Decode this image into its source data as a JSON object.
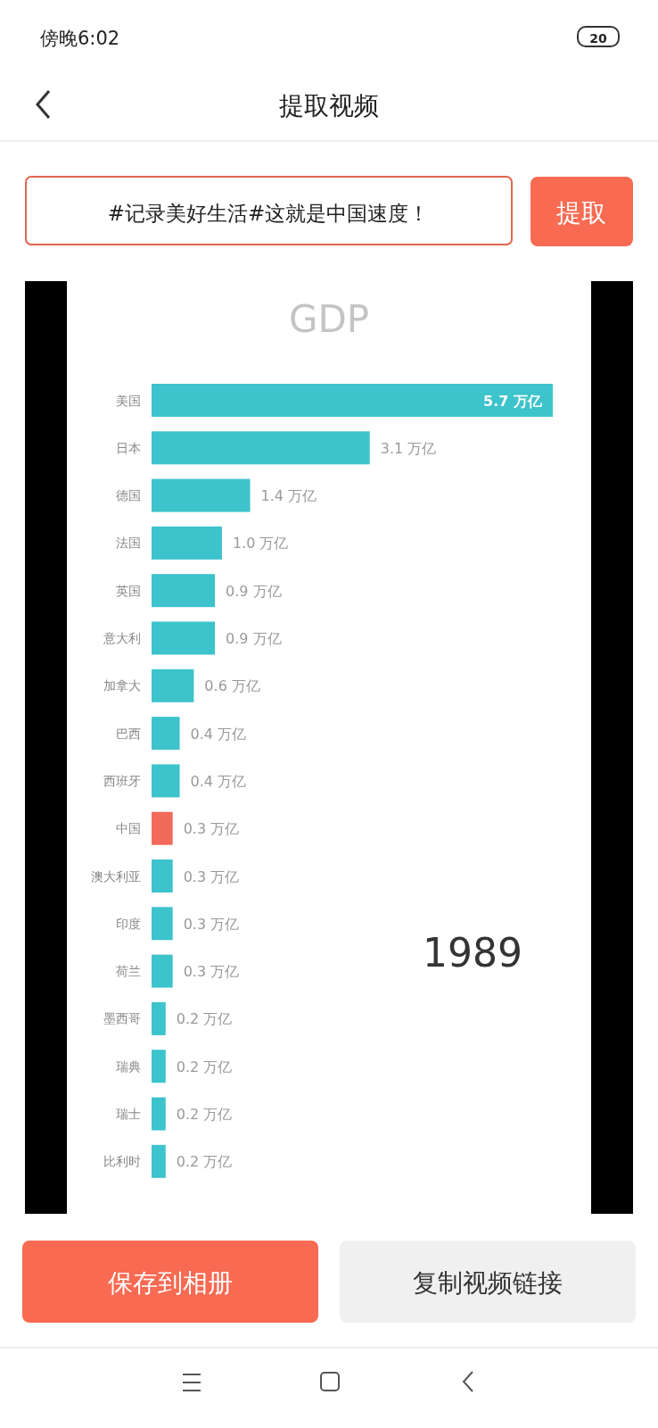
{
  "chart_data": {
    "type": "bar",
    "orientation": "horizontal",
    "title": "GDP",
    "categories": [
      "美国",
      "日本",
      "德国",
      "法国",
      "英国",
      "意大利",
      "加拿大",
      "巴西",
      "西班牙",
      "中国",
      "澳大利亚",
      "印度",
      "荷兰",
      "墨西哥",
      "瑞典",
      "瑞士",
      "比利时"
    ],
    "values": [
      5.7,
      3.1,
      1.4,
      1.0,
      0.9,
      0.9,
      0.6,
      0.4,
      0.4,
      0.3,
      0.3,
      0.3,
      0.3,
      0.2,
      0.2,
      0.2,
      0.2
    ],
    "colors": [
      "#3dc3cb",
      "#3dc3cb",
      "#3dc3cb",
      "#3dc3cb",
      "#3dc3cb",
      "#3dc3cb",
      "#3dc3cb",
      "#3dc3cb",
      "#3dc3cb",
      "#f26a5a",
      "#3dc3cb",
      "#3dc3cb",
      "#3dc3cb",
      "#3dc3cb",
      "#3dc3cb",
      "#3dc3cb",
      "#3dc3cb"
    ],
    "value_labels": [
      "5.7 万亿",
      "3.1 万亿",
      "1.4 万亿",
      "1.0 万亿",
      "0.9 万亿",
      "0.9 万亿",
      "0.6 万亿",
      "0.4 万亿",
      "0.4 万亿",
      "0.3 万亿",
      "0.3 万亿",
      "0.3 万亿",
      "0.3 万亿",
      "0.2 万亿",
      "0.2 万亿",
      "0.2 万亿",
      "0.2 万亿"
    ],
    "annotations": [
      "傍晚6:02",
      "20",
      "提取视频",
      "#记录美好生活#这就是中国速度！",
      "提取",
      "1989",
      "保存到相册",
      "复制视频链接"
    ]
  }
}
